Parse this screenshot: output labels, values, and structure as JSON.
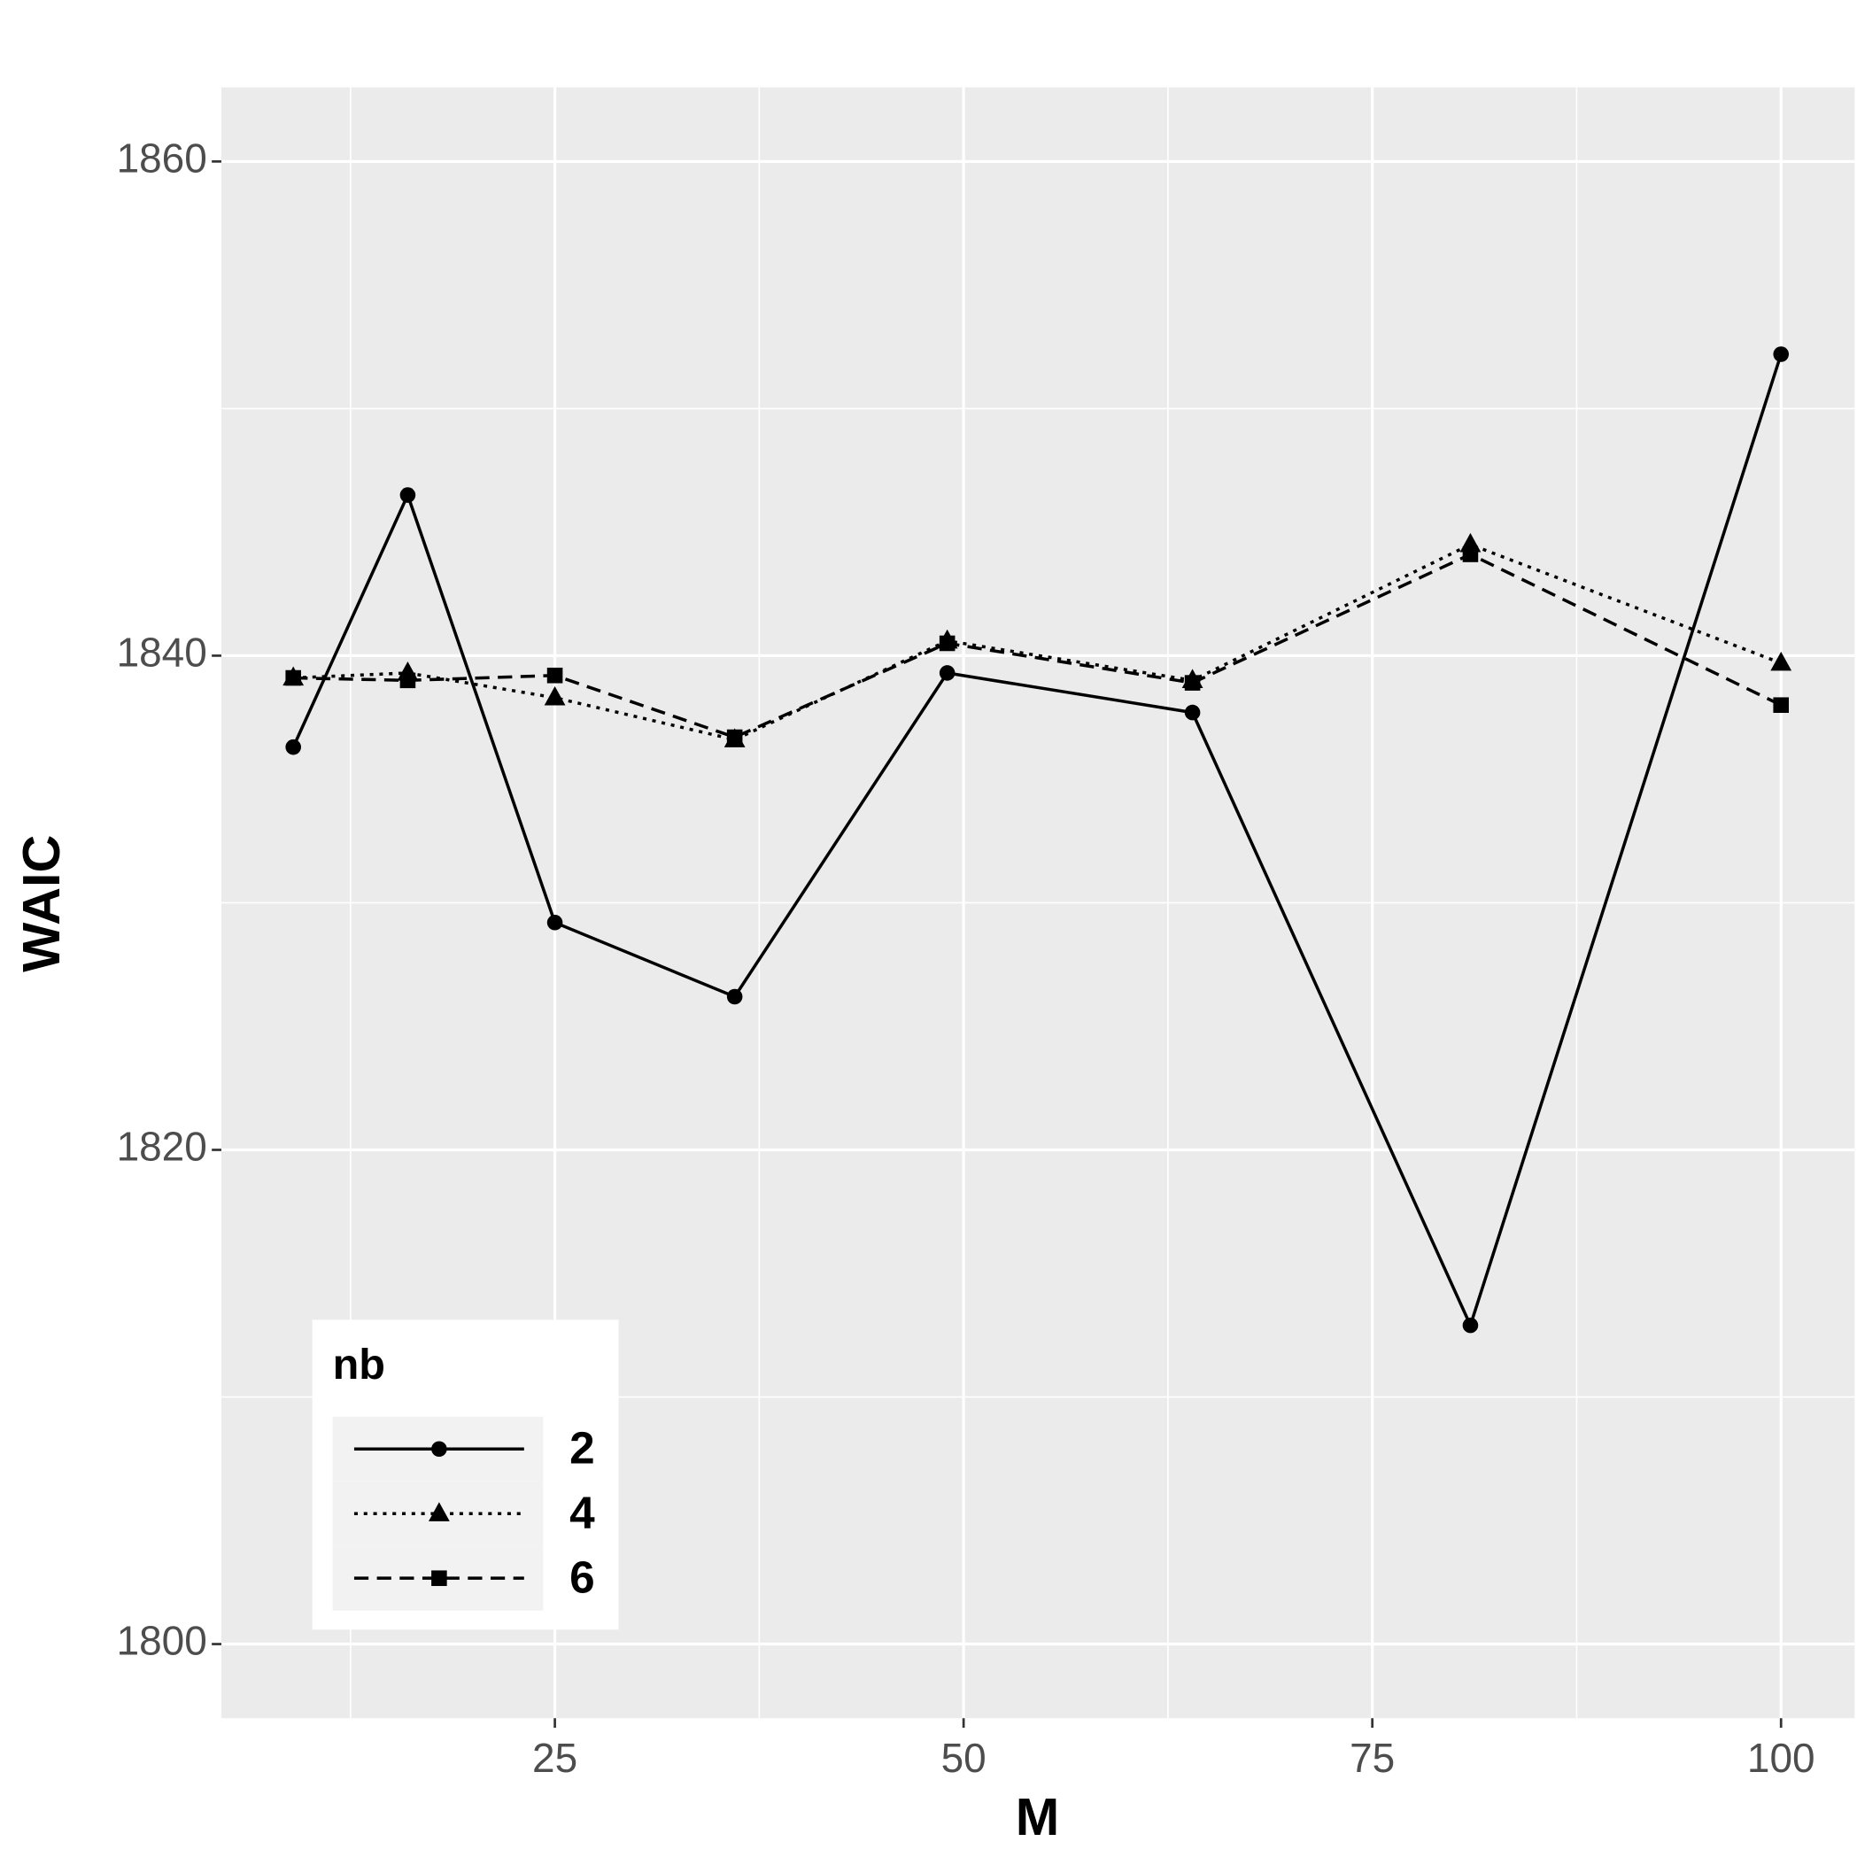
{
  "chart_data": {
    "type": "line",
    "x_label": "M",
    "y_label": "WAIC",
    "x": [
      9,
      16,
      25,
      36,
      49,
      64,
      81,
      100
    ],
    "series": [
      {
        "name": "2",
        "color": "#000000",
        "marker": "circle",
        "linestyle": "solid",
        "values": [
          1836.3,
          1846.5,
          1829.2,
          1826.2,
          1839.3,
          1837.7,
          1812.9,
          1852.2
        ]
      },
      {
        "name": "4",
        "color": "#000000",
        "marker": "triangle",
        "linestyle": "dotted",
        "values": [
          1839.1,
          1839.3,
          1838.3,
          1836.6,
          1840.6,
          1839.0,
          1844.5,
          1839.7
        ]
      },
      {
        "name": "6",
        "color": "#000000",
        "marker": "square",
        "linestyle": "dashed",
        "values": [
          1839.1,
          1839.0,
          1839.2,
          1836.7,
          1840.5,
          1838.9,
          1844.1,
          1838.0
        ]
      }
    ],
    "legend_title": "nb",
    "legend_position": "bottom-left",
    "xlim": [
      4.6,
      104.5
    ],
    "xticks": [
      25,
      50,
      75,
      100
    ],
    "ylim": [
      1797,
      1863
    ],
    "yticks": [
      1800,
      1820,
      1840,
      1860
    ],
    "grid": true
  }
}
